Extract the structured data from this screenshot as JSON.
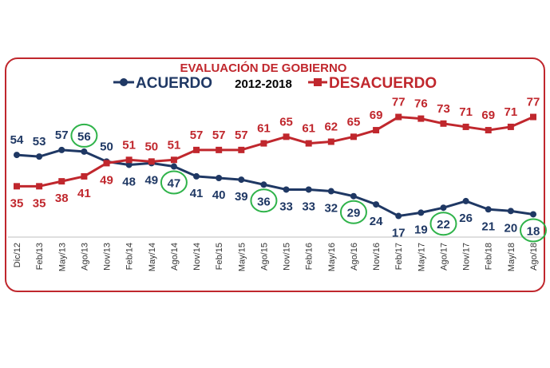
{
  "chart_data": {
    "type": "line",
    "title": "EVALUACIÓN DE GOBIERNO",
    "subtitle": "2012-2018",
    "categories": [
      "Dic/12",
      "Feb/13",
      "May/13",
      "Ago/13",
      "Nov/13",
      "Feb/14",
      "May/14",
      "Ago/14",
      "Nov/14",
      "Feb/15",
      "May/15",
      "Ago/15",
      "Nov/15",
      "Feb/16",
      "May/16",
      "Ago/16",
      "Nov/16",
      "Feb/17",
      "May/17",
      "Ago/17",
      "Nov/17",
      "Feb/18",
      "May/18",
      "Ago/18"
    ],
    "series": [
      {
        "name": "ACUERDO",
        "color": "#1f3864",
        "marker": "circle",
        "values": [
          54,
          53,
          57,
          56,
          50,
          48,
          49,
          47,
          41,
          40,
          39,
          36,
          33,
          33,
          32,
          29,
          24,
          17,
          19,
          22,
          26,
          21,
          20,
          18
        ]
      },
      {
        "name": "DESACUERDO",
        "color": "#c0272d",
        "marker": "square",
        "values": [
          35,
          35,
          38,
          41,
          49,
          51,
          50,
          51,
          57,
          57,
          57,
          61,
          65,
          61,
          62,
          65,
          69,
          77,
          76,
          73,
          71,
          69,
          71,
          77
        ]
      }
    ],
    "highlighted_points": [
      {
        "series": "ACUERDO",
        "category": "Ago/13"
      },
      {
        "series": "ACUERDO",
        "category": "Ago/14"
      },
      {
        "series": "ACUERDO",
        "category": "Ago/15"
      },
      {
        "series": "ACUERDO",
        "category": "Ago/16"
      },
      {
        "series": "ACUERDO",
        "category": "Ago/17"
      },
      {
        "series": "ACUERDO",
        "category": "Ago/18"
      }
    ],
    "highlight_color": "#2fb34a",
    "ylim": [
      10,
      85
    ],
    "grid": false,
    "legend": "top"
  }
}
